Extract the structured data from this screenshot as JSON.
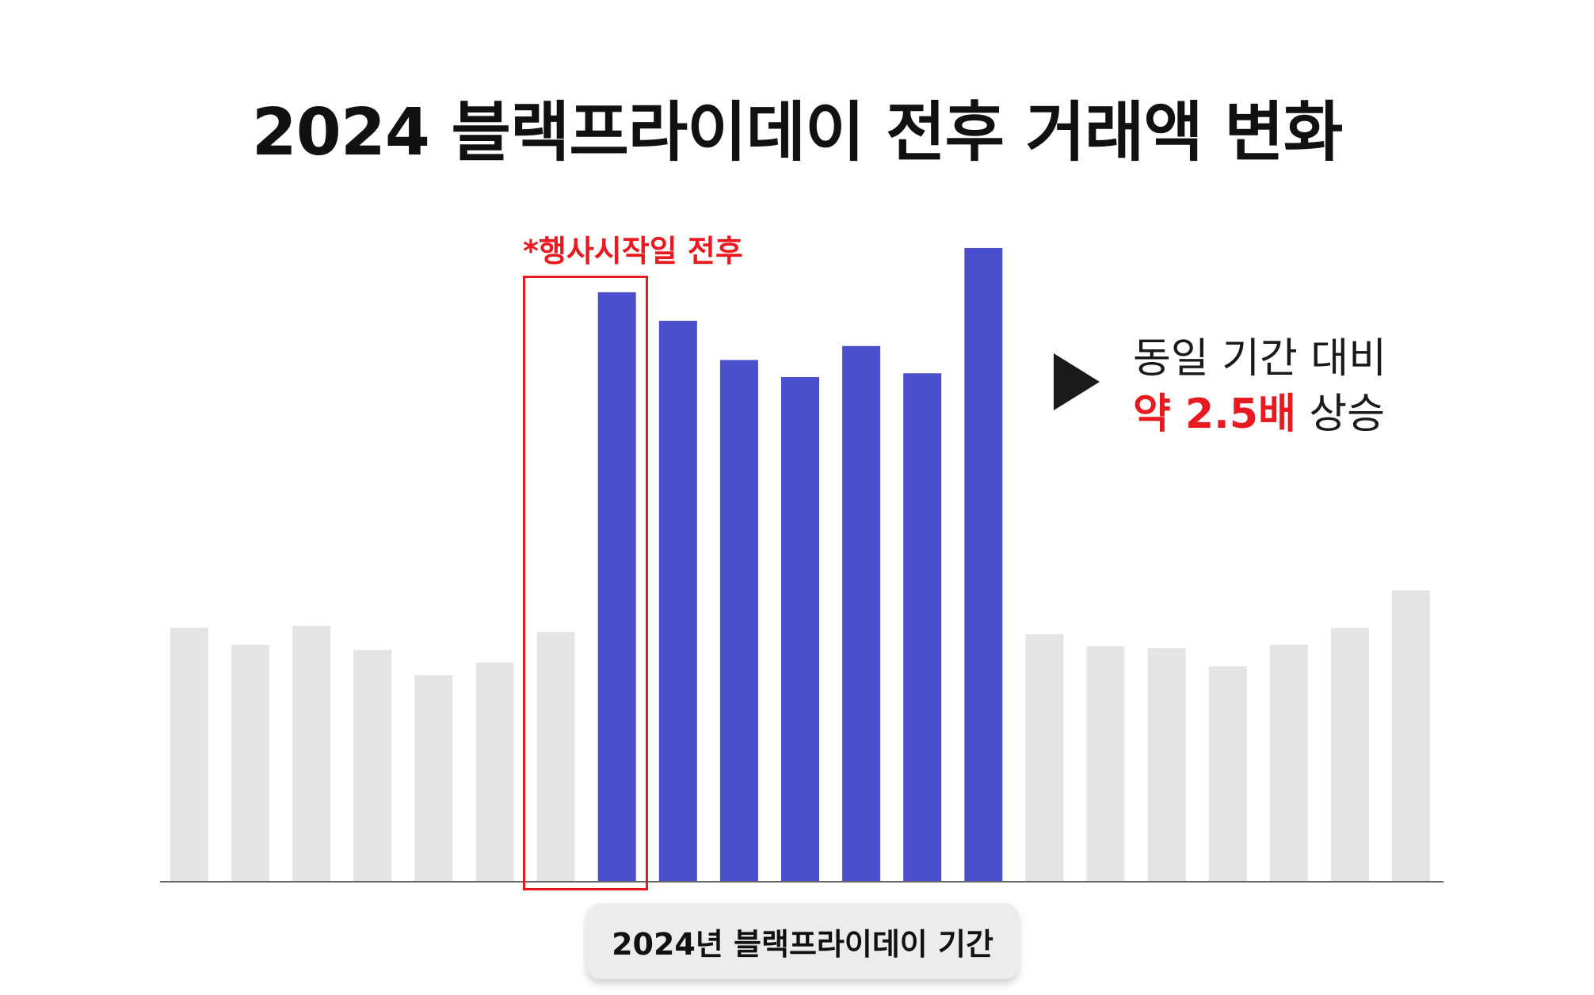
{
  "title": "2024 블랙프라이데이 전후 거래액 변화",
  "annotations": {
    "highlight_label": "*행사시작일 전후",
    "callout_line1": "동일 기간 대비",
    "callout_em": "약 2.5배",
    "callout_rest": " 상승",
    "period_label": "2024년 블랙프라이데이 기간"
  },
  "colors": {
    "highlight": "#4b4fcd",
    "base": "#e4e4e4",
    "accent_red": "#e8191f",
    "axis": "#666666"
  },
  "chart_data": {
    "type": "bar",
    "title": "2024 블랙프라이데이 전후 거래액 변화",
    "xlabel": "",
    "ylabel": "",
    "ylim": [
      0,
      100
    ],
    "grid": false,
    "legend": "none",
    "series": [
      {
        "values": [
          40,
          37.3,
          40.3,
          36.5,
          32.5,
          34.5,
          39.3,
          93,
          88.5,
          82.3,
          79.6,
          84.5,
          80.2,
          100,
          39,
          37.1,
          36.8,
          33.9,
          37.3,
          40,
          45.9
        ],
        "highlighted": [
          false,
          false,
          false,
          false,
          false,
          false,
          false,
          true,
          true,
          true,
          true,
          true,
          true,
          true,
          false,
          false,
          false,
          false,
          false,
          false,
          false
        ]
      }
    ]
  }
}
